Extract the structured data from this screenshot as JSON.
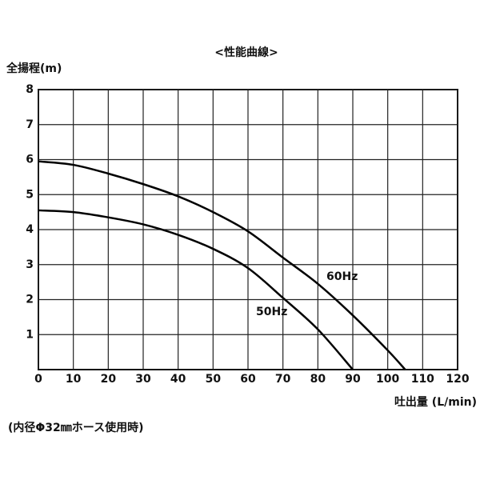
{
  "chart_data": {
    "type": "line",
    "title": "<性能曲線>",
    "y_label": "全揚程(m)",
    "x_label": "吐出量 (L/min)",
    "note": "(内径Φ32㎜ホース使用時)",
    "grid": true,
    "xlim": [
      0,
      120
    ],
    "xticks": [
      0,
      10,
      20,
      30,
      40,
      50,
      60,
      70,
      80,
      90,
      100,
      110,
      120
    ],
    "ylim": [
      0,
      8
    ],
    "yticks": [
      1,
      2,
      3,
      4,
      5,
      6,
      7,
      8
    ],
    "series": [
      {
        "name": "60Hz",
        "color": "#000000",
        "x": [
          0,
          10,
          20,
          30,
          40,
          50,
          60,
          70,
          80,
          90,
          100,
          105
        ],
        "values": [
          5.95,
          5.85,
          5.6,
          5.3,
          4.95,
          4.5,
          3.95,
          3.2,
          2.45,
          1.55,
          0.55,
          0
        ]
      },
      {
        "name": "50Hz",
        "color": "#000000",
        "x": [
          0,
          10,
          20,
          30,
          40,
          50,
          60,
          70,
          80,
          90
        ],
        "values": [
          4.55,
          4.5,
          4.35,
          4.15,
          3.85,
          3.45,
          2.9,
          2.05,
          1.15,
          0
        ]
      }
    ]
  }
}
